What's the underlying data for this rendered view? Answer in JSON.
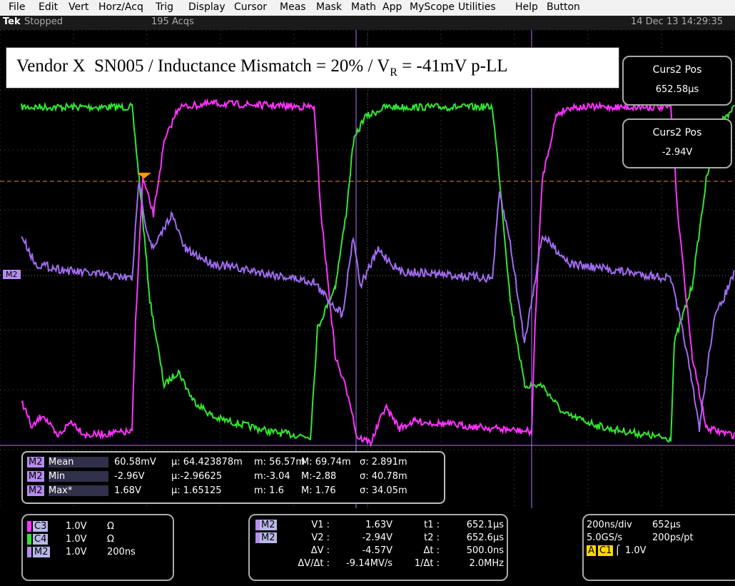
{
  "menu": [
    "File",
    "Edit",
    "Vert",
    "Horz/Acq",
    "Trig",
    "Display",
    "Cursor",
    "Meas",
    "Mask",
    "Math",
    "App",
    "MyScope",
    "Utilities",
    "Help",
    "Button"
  ],
  "status": {
    "brand": "Tek",
    "state": "Stopped",
    "acqs": "195 Acqs",
    "datetime": "14 Dec 13 14:29:35"
  },
  "annotation": {
    "text": "Vendor X  SN005 / Inductance Mismatch = 20% / V",
    "subscript": "R",
    "text_after": " = -41mV p-LL"
  },
  "cursor_readouts": [
    {
      "label": "Curs2 Pos",
      "value": "652.58µs"
    },
    {
      "label": "Curs2 Pos",
      "value": "-2.94V"
    }
  ],
  "reference_marker": "M2",
  "measurements": {
    "rows": [
      [
        "M2",
        "Mean",
        "60.58mV",
        "µ: 64.423878m",
        "m: 56.57m",
        "M: 69.74m",
        "σ: 2.891m"
      ],
      [
        "M2",
        "Min",
        "-2.96V",
        "µ:-2.96625",
        "m:-3.04",
        "M:-2.88",
        "σ: 40.78m"
      ],
      [
        "M2",
        "Max*",
        "1.68V",
        "µ: 1.65125",
        "m: 1.6",
        "M: 1.76",
        "σ: 34.05m"
      ]
    ]
  },
  "channels": [
    {
      "name": "C3",
      "scale": "1.0V",
      "setting": "Ω"
    },
    {
      "name": "C4",
      "scale": "1.0V",
      "setting": "Ω"
    },
    {
      "name": "M2",
      "scale": "1.0V",
      "setting": "200ns"
    }
  ],
  "cursors": {
    "sources": [
      "M2",
      "M2"
    ],
    "rows": [
      [
        "V1 :",
        "1.63V",
        "t1 :",
        "652.1µs"
      ],
      [
        "V2 :",
        "-2.94V",
        "t2 :",
        "652.6µs"
      ],
      [
        "ΔV :",
        "-4.57V",
        "Δt :",
        "500.0ns"
      ],
      [
        "ΔV/Δt :",
        "-9.14MV/s",
        "1/Δt :",
        "2.0MHz"
      ]
    ]
  },
  "timebase": {
    "horizontal": "200ns/div",
    "position": "652µs",
    "sample_rate": "5.0GS/s",
    "resolution": "200ps/pt",
    "trigger_mode": "A",
    "trigger_source": "C1",
    "trigger_level": "1.0V"
  }
}
